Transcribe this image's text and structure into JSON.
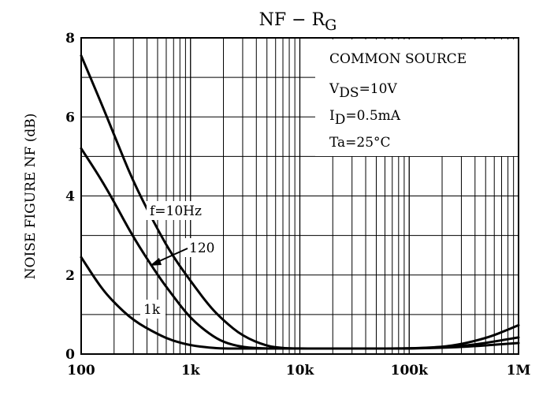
{
  "chart_data": {
    "type": "line",
    "title": {
      "main": "NF  −  R",
      "sub": "G"
    },
    "xlabel": "",
    "ylabel": "NOISE FIGURE  NF  (dB)",
    "xscale": "log",
    "xlim": [
      100,
      1000000
    ],
    "ylim": [
      0,
      8
    ],
    "xticks": [
      100,
      1000,
      10000,
      100000,
      1000000
    ],
    "xtick_labels": [
      "100",
      "1k",
      "10k",
      "100k",
      "1M"
    ],
    "yticks": [
      0,
      2,
      4,
      6,
      8
    ],
    "ytick_labels": [
      "0",
      "2",
      "4",
      "6",
      "8"
    ],
    "grid": true,
    "conditions": [
      {
        "text": "COMMON SOURCE"
      },
      {
        "main": "V",
        "sub": "DS",
        "rest": "=10V"
      },
      {
        "main": "I",
        "sub": "D",
        "rest": "=0.5mA"
      },
      {
        "text": "Ta=25°C"
      }
    ],
    "series": [
      {
        "name": "f=10Hz",
        "x": [
          100,
          150,
          200,
          300,
          500,
          700,
          1000,
          1500,
          2000,
          3000,
          5000,
          7000,
          10000,
          20000,
          50000,
          100000,
          200000,
          300000,
          500000,
          700000,
          1000000
        ],
        "y": [
          7.55,
          6.4,
          5.55,
          4.35,
          3.15,
          2.45,
          1.85,
          1.2,
          0.85,
          0.45,
          0.2,
          0.15,
          0.14,
          0.14,
          0.14,
          0.14,
          0.18,
          0.25,
          0.4,
          0.55,
          0.73
        ]
      },
      {
        "name": "120",
        "x": [
          100,
          150,
          200,
          300,
          500,
          700,
          1000,
          1500,
          2000,
          3000,
          5000,
          10000,
          50000,
          100000,
          200000,
          300000,
          500000,
          700000,
          1000000
        ],
        "y": [
          5.2,
          4.45,
          3.85,
          2.95,
          2.0,
          1.45,
          0.9,
          0.5,
          0.3,
          0.17,
          0.14,
          0.14,
          0.14,
          0.14,
          0.17,
          0.2,
          0.28,
          0.35,
          0.42
        ]
      },
      {
        "name": "1k",
        "x": [
          100,
          150,
          200,
          300,
          500,
          700,
          1000,
          1500,
          2000,
          3000,
          10000,
          100000,
          200000,
          300000,
          500000,
          700000,
          1000000
        ],
        "y": [
          2.45,
          1.7,
          1.3,
          0.85,
          0.5,
          0.33,
          0.22,
          0.16,
          0.14,
          0.14,
          0.14,
          0.14,
          0.16,
          0.18,
          0.22,
          0.25,
          0.28
        ]
      }
    ],
    "annotations": [
      {
        "text": "f=10Hz"
      },
      {
        "text": "120"
      },
      {
        "text": "1k"
      }
    ]
  }
}
